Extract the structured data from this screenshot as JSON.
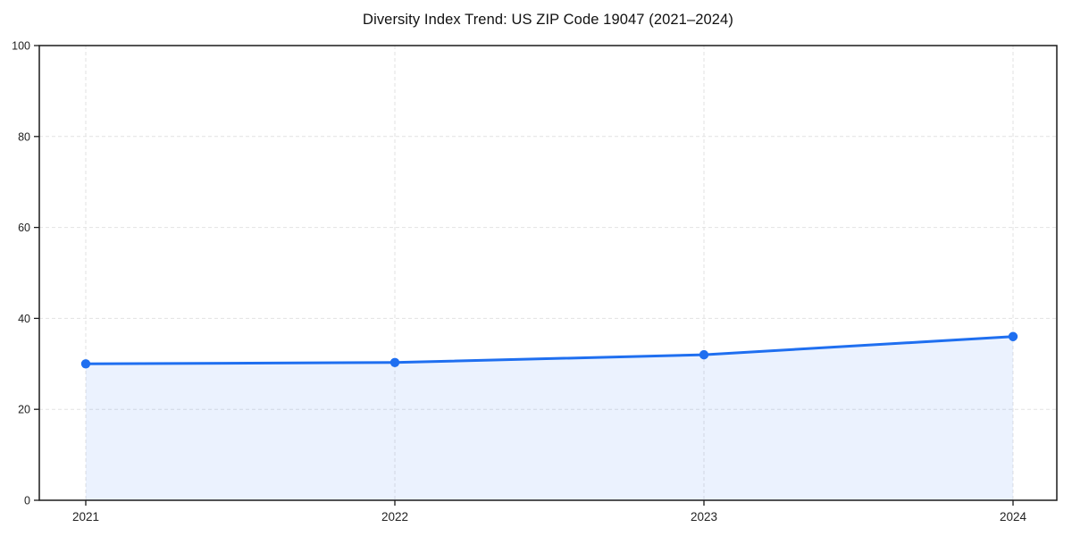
{
  "chart_data": {
    "type": "area",
    "title": "Diversity Index Trend: US ZIP Code 19047 (2021–2024)",
    "categories": [
      "2021",
      "2022",
      "2023",
      "2024"
    ],
    "values": [
      30,
      30.3,
      32,
      36
    ],
    "series": [
      {
        "name": "Diversity Index",
        "values": [
          30,
          30.3,
          32,
          36
        ]
      }
    ],
    "xlabel": "",
    "ylabel": "",
    "ylim": [
      0,
      100
    ],
    "yticks": [
      0,
      20,
      40,
      60,
      80,
      100
    ],
    "grid": "on",
    "grid_style": "dashed",
    "legend_position": "none",
    "marker": "circle",
    "colors": {
      "line": "#1f6ff0",
      "marker": "#1f6ff0",
      "fill": "rgba(31, 111, 240, 0.09)",
      "grid": "#e2e2e2",
      "spine": "#1a1a1a",
      "tick_label": "#222222",
      "title": "#111111",
      "background": "#ffffff"
    }
  }
}
